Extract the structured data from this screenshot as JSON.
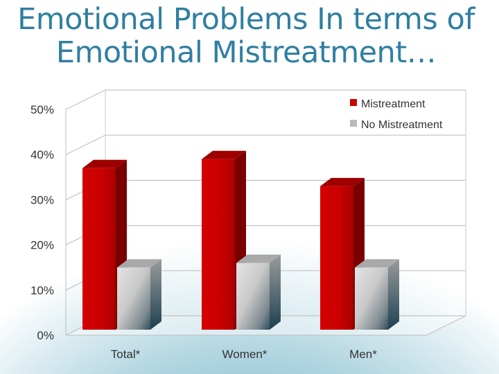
{
  "slide": {
    "title_line1": "Emotional Problems In terms of",
    "title_line2": "Emotional Mistreatment…"
  },
  "chart_data": {
    "type": "bar",
    "categories": [
      "Total*",
      "Women*",
      "Men*"
    ],
    "series": [
      {
        "name": "Mistreatment",
        "values": [
          37,
          39,
          33
        ],
        "color": "#cc0000"
      },
      {
        "name": "No Mistreatment",
        "values": [
          15,
          16,
          15
        ],
        "color": "#c8c8c8"
      }
    ],
    "ylim": [
      0,
      50
    ],
    "yticks": [
      "0%",
      "10%",
      "20%",
      "30%",
      "40%",
      "50%"
    ],
    "title": "",
    "xlabel": "",
    "ylabel": "",
    "grid": true,
    "legend": "top-right"
  }
}
